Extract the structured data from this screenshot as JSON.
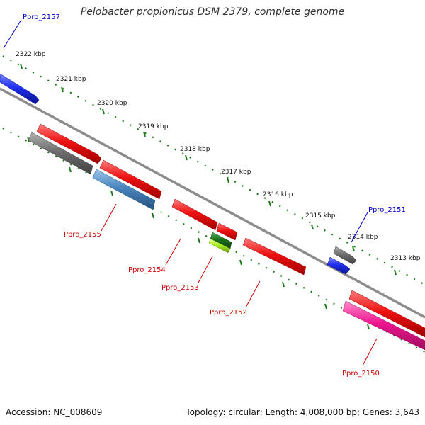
{
  "title": "Pelobacter propionicus DSM 2379, complete genome",
  "footer": {
    "accession": "Accession: NC_008609",
    "topology": "Topology: circular; Length: 4,008,000 bp; Genes: 3,643"
  },
  "colors": {
    "backbone": "#8c8c8c",
    "tick": "#1a7a1a",
    "red": "#ee1111",
    "gray": "#6e6e6e",
    "steelblue": "#4a86c0",
    "blue": "#1f2fee",
    "darkgreen": "#1a6f1a",
    "lime": "#a8ee22",
    "pink": "#ee1690",
    "label_forward": "#0000cc",
    "label_reverse": "#cc0000"
  },
  "kbp_labels": [
    "2322 kbp",
    "2321 kbp",
    "2320 kbp",
    "2319 kbp",
    "2318 kbp",
    "2317 kbp",
    "2316 kbp",
    "2315 kbp",
    "2314 kbp",
    "2313 kbp"
  ],
  "gene_labels": [
    {
      "text": "Ppro_2157",
      "strand": "forward"
    },
    {
      "text": "Ppro_2151",
      "strand": "forward"
    },
    {
      "text": "Ppro_2155",
      "strand": "reverse"
    },
    {
      "text": "Ppro_2154",
      "strand": "reverse"
    },
    {
      "text": "Ppro_2153",
      "strand": "reverse"
    },
    {
      "text": "Ppro_2152",
      "strand": "reverse"
    },
    {
      "text": "Ppro_2150",
      "strand": "reverse"
    }
  ]
}
